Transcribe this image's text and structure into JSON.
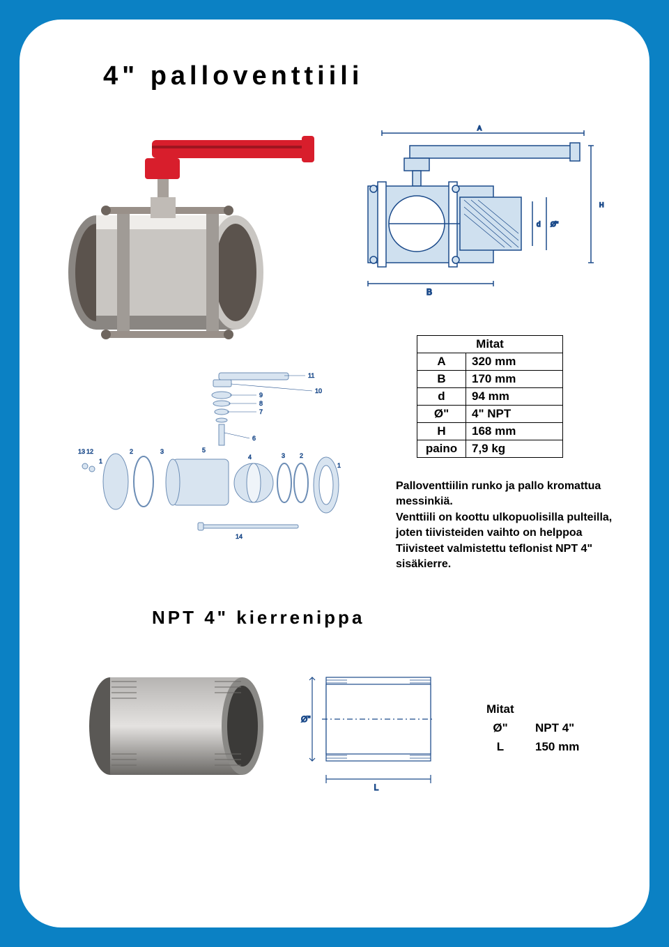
{
  "colors": {
    "page_bg": "#0b81c4",
    "card_bg": "#ffffff",
    "handle_red": "#d81e2c",
    "body_grey": "#c9c6c2",
    "body_shadow": "#8a8682",
    "body_highlight": "#efedea",
    "diagram_stroke": "#1b4a8a",
    "diagram_fill": "#cfe0ef",
    "nipple_grey": "#8a8986",
    "nipple_light": "#b6b4b2",
    "text": "#000000"
  },
  "section1": {
    "title": "4\" palloventtiili",
    "table_header": "Mitat",
    "rows": [
      {
        "key": "A",
        "val": "320 mm"
      },
      {
        "key": "B",
        "val": "170 mm"
      },
      {
        "key": "d",
        "val": "94 mm"
      },
      {
        "key": "Ø\"",
        "val": "4\" NPT"
      },
      {
        "key": "H",
        "val": "168 mm"
      },
      {
        "key": "paino",
        "val": "7,9 kg"
      }
    ],
    "description": "Palloventtiilin runko ja pallo kromattua messinkiä.\nVenttiili on koottu ulkopuolisilla pulteilla, joten tiivisteiden vaihto on helppoa Tiivisteet valmistettu teflonist NPT 4\" sisäkierre.",
    "tech_labels": {
      "A": "A",
      "B": "B",
      "H": "H",
      "d": "d",
      "O": "Ø\""
    },
    "exploded_labels": [
      "1",
      "2",
      "3",
      "4",
      "5",
      "6",
      "7",
      "8",
      "9",
      "10",
      "11",
      "12",
      "13",
      "14"
    ]
  },
  "section2": {
    "title": "NPT 4\" kierrenippa",
    "dims_header": "Mitat",
    "rows": [
      {
        "key": "Ø\"",
        "val": "NPT 4\""
      },
      {
        "key": "L",
        "val": "150 mm"
      }
    ],
    "diagram_labels": {
      "O": "Ø\"",
      "L": "L"
    }
  }
}
